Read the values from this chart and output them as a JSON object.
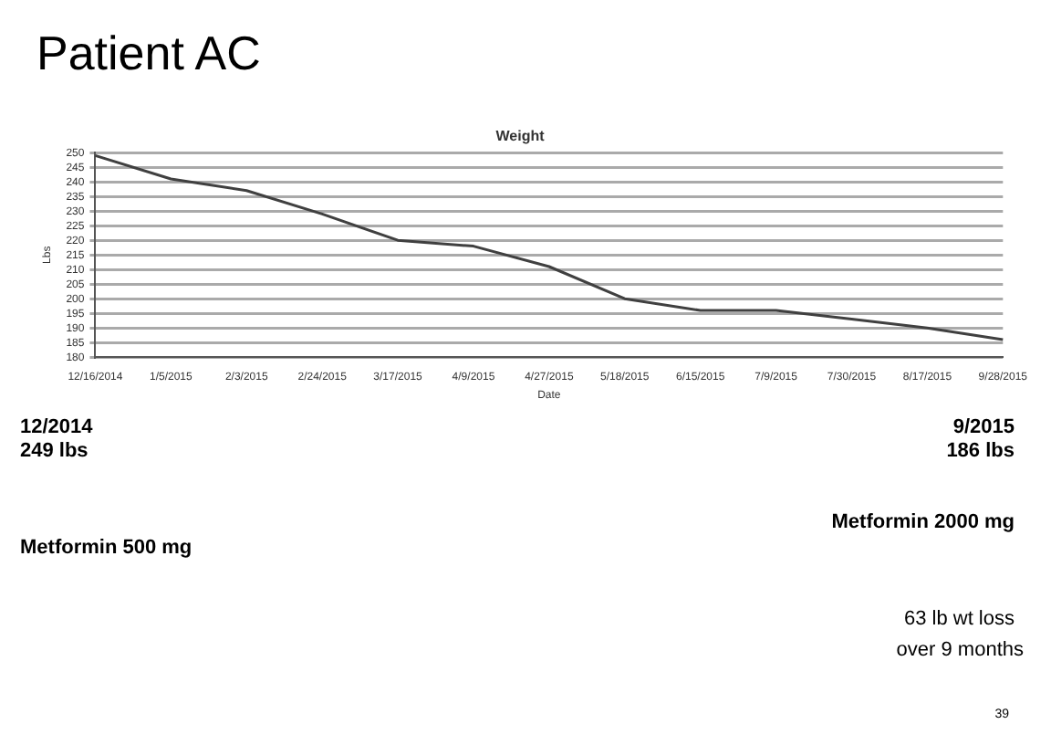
{
  "chart_data": {
    "type": "line",
    "title": "Weight",
    "subtitle": "Patient AC",
    "xlabel": "Date",
    "ylabel": "Lbs",
    "categories": [
      "12/16/2014",
      "1/5/2015",
      "2/3/2015",
      "2/24/2015",
      "3/17/2015",
      "4/9/2015",
      "4/27/2015",
      "5/18/2015",
      "6/15/2015",
      "7/9/2015",
      "7/30/2015",
      "8/17/2015",
      "9/28/2015"
    ],
    "series": [
      {
        "color": "#404040",
        "values": [
          249,
          241,
          237,
          229,
          220,
          218,
          211,
          200,
          196,
          196,
          193,
          190,
          186
        ]
      }
    ],
    "ylim": [
      180,
      250
    ],
    "yticks": [
      180,
      185,
      190,
      195,
      200,
      205,
      210,
      215,
      220,
      225,
      230,
      235,
      240,
      245,
      250
    ],
    "grid": "y",
    "legend": false,
    "marker": "none",
    "line_style": "solid",
    "annotations": [
      "12/2014",
      "249 lbs",
      "Metformin 500 mg",
      "9/2015",
      "186 lbs",
      "Metformin 2000 mg",
      "63 lb wt loss",
      "over 9 months",
      "39"
    ]
  }
}
